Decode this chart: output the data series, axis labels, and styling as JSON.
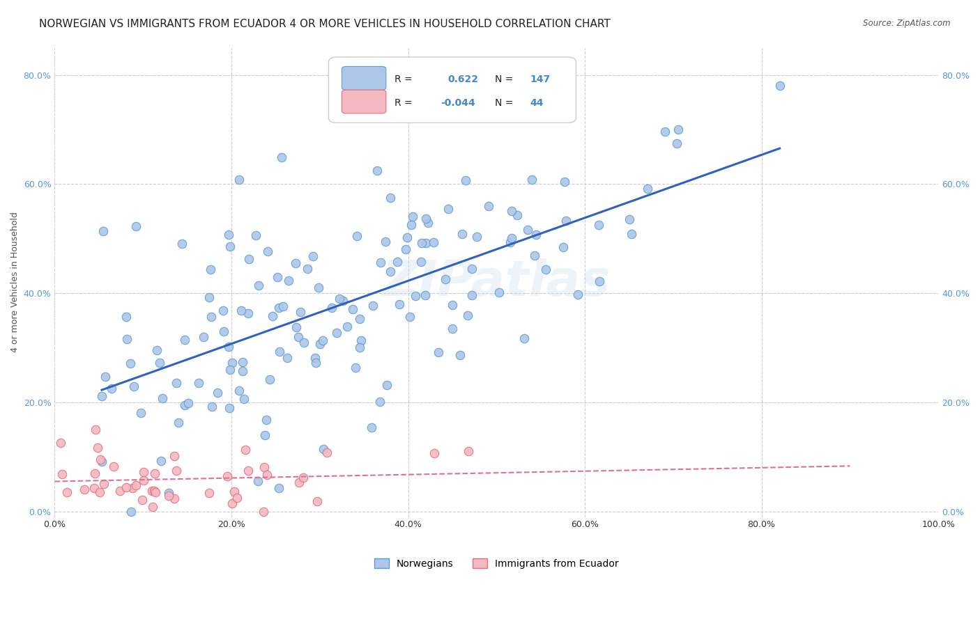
{
  "title": "NORWEGIAN VS IMMIGRANTS FROM ECUADOR 4 OR MORE VEHICLES IN HOUSEHOLD CORRELATION CHART",
  "source": "Source: ZipAtlas.com",
  "ylabel": "4 or more Vehicles in Household",
  "xlabel": "",
  "xlim": [
    0.0,
    1.0
  ],
  "ylim": [
    0.0,
    0.85
  ],
  "xticks": [
    0.0,
    0.2,
    0.4,
    0.6,
    0.8,
    1.0
  ],
  "xticklabels": [
    "0.0%",
    "20.0%",
    "40.0%",
    "60.0%",
    "80.0%",
    "100.0%"
  ],
  "yticks": [
    0.0,
    0.2,
    0.4,
    0.6,
    0.8
  ],
  "yticklabels": [
    "0.0%",
    "20.0%",
    "40.0%",
    "60.0%",
    "80.0%"
  ],
  "norwegian_R": 0.622,
  "norwegian_N": 147,
  "ecuador_R": -0.044,
  "ecuador_N": 44,
  "norwegian_color": "#aec6e8",
  "norwegian_edge": "#5a9fd4",
  "ecuador_color": "#f4b8c1",
  "ecuador_edge": "#e07080",
  "trend_norwegian_color": "#3060c0",
  "trend_ecuador_color": "#e07090",
  "background_color": "#ffffff",
  "grid_color": "#cccccc",
  "watermark": "ZIPatlas",
  "legend_labels": [
    "Norwegians",
    "Immigrants from Ecuador"
  ],
  "title_fontsize": 11,
  "axis_fontsize": 9,
  "tick_fontsize": 9,
  "legend_fontsize": 10,
  "seed": 42
}
